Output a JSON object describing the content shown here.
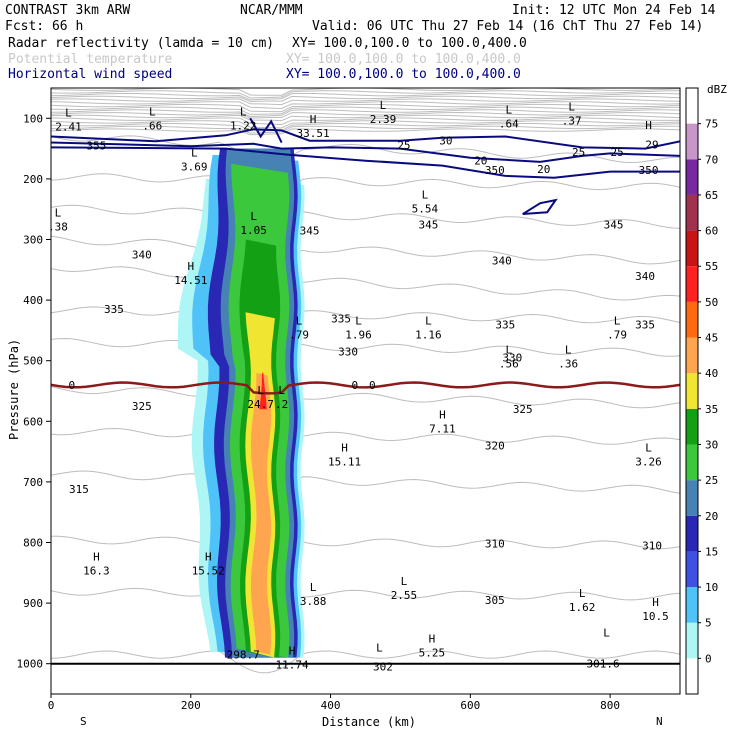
{
  "header": {
    "left1": "CONTRAST  3km ARW",
    "center1": "NCAR/MMM",
    "right1": "Init: 12 UTC Mon 24 Feb 14",
    "left2": "Fcst:   66 h",
    "right2": "Valid: 06 UTC Thu 27 Feb 14 (16 ChT Thu 27 Feb 14)",
    "fields": [
      {
        "name": "Radar reflectivity (lamda = 10 cm)",
        "xy": "XY= 100.0,100.0 to 100.0,400.0",
        "color": "#000000"
      },
      {
        "name": "Potential temperature",
        "xy": "XY= 100.0,100.0 to 100.0,400.0",
        "color": "#c8c8c8"
      },
      {
        "name": "Horizontal wind speed",
        "xy": "XY= 100.0,100.0 to 100.0,400.0",
        "color": "#000080"
      }
    ]
  },
  "chart_data": {
    "type": "cross-section",
    "ylabel": "Pressure (hPa)",
    "xlabel": "Distance (km)",
    "y_ticks": [
      100,
      200,
      300,
      400,
      500,
      600,
      700,
      800,
      900,
      1000
    ],
    "x_ticks": [
      0,
      200,
      400,
      600,
      800
    ],
    "y_range": [
      50,
      1050
    ],
    "x_range": [
      0,
      900
    ],
    "x_end_labels": {
      "left": "S",
      "right": "N"
    },
    "colorbar": {
      "unit": "dBZ",
      "levels": [
        "0",
        "5",
        "10",
        "15",
        "20",
        "25",
        "30",
        "35",
        "40",
        "45",
        "50",
        "55",
        "60",
        "65",
        "70",
        "75"
      ],
      "colors": [
        "#ffffff",
        "#aef5f5",
        "#4fc3f7",
        "#3f51e0",
        "#2828b4",
        "#4682b4",
        "#3cc83c",
        "#14a014",
        "#f0e632",
        "#ffa54f",
        "#ff6a10",
        "#ff2020",
        "#c81414",
        "#a03250",
        "#7828a0",
        "#c896c8"
      ]
    },
    "theta_labels": [
      {
        "t": "355",
        "x": 65,
        "p": 145
      },
      {
        "t": "350",
        "x": 635,
        "p": 185
      },
      {
        "t": "350",
        "x": 855,
        "p": 185
      },
      {
        "t": "345",
        "x": 540,
        "p": 275
      },
      {
        "t": "345",
        "x": 805,
        "p": 275
      },
      {
        "t": "345",
        "x": 370,
        "p": 285
      },
      {
        "t": "340",
        "x": 130,
        "p": 325
      },
      {
        "t": "340",
        "x": 645,
        "p": 335
      },
      {
        "t": "340",
        "x": 850,
        "p": 360
      },
      {
        "t": "335",
        "x": 90,
        "p": 415
      },
      {
        "t": "335",
        "x": 415,
        "p": 430
      },
      {
        "t": "335",
        "x": 650,
        "p": 440
      },
      {
        "t": "335",
        "x": 850,
        "p": 440
      },
      {
        "t": "330",
        "x": 425,
        "p": 485
      },
      {
        "t": "330",
        "x": 660,
        "p": 495
      },
      {
        "t": "325",
        "x": 130,
        "p": 575
      },
      {
        "t": "325",
        "x": 675,
        "p": 580
      },
      {
        "t": "320",
        "x": 635,
        "p": 640
      },
      {
        "t": "315",
        "x": 40,
        "p": 712
      },
      {
        "t": "310",
        "x": 635,
        "p": 802
      },
      {
        "t": "310",
        "x": 860,
        "p": 805
      },
      {
        "t": "305",
        "x": 635,
        "p": 895
      },
      {
        "t": "302",
        "x": 475,
        "p": 1005
      },
      {
        "t": "301.6",
        "x": 790,
        "p": 1000
      },
      {
        "t": "298.7",
        "x": 275,
        "p": 985
      }
    ],
    "wind_contour_labels": [
      {
        "t": "30",
        "x": 565,
        "p": 137
      },
      {
        "t": "25",
        "x": 505,
        "p": 144
      },
      {
        "t": "25",
        "x": 755,
        "p": 156
      },
      {
        "t": "25",
        "x": 810,
        "p": 156
      },
      {
        "t": "20",
        "x": 615,
        "p": 170
      },
      {
        "t": "20",
        "x": 705,
        "p": 184
      },
      {
        "t": "29",
        "x": 860,
        "p": 143
      }
    ],
    "extrema": [
      {
        "kind": "L",
        "v": "2.41",
        "x": 25,
        "p": 97
      },
      {
        "kind": "L",
        "v": ".66",
        "x": 145,
        "p": 95
      },
      {
        "kind": "L",
        "v": "1.22",
        "x": 275,
        "p": 95
      },
      {
        "kind": "L",
        "v": "2.39",
        "x": 475,
        "p": 85
      },
      {
        "kind": "L",
        "v": ".64",
        "x": 655,
        "p": 92
      },
      {
        "kind": "L",
        "v": ".37",
        "x": 745,
        "p": 87
      },
      {
        "kind": "H",
        "v": "33.51",
        "x": 375,
        "p": 108
      },
      {
        "kind": "H",
        "v": "",
        "x": 855,
        "p": 118
      },
      {
        "kind": "L",
        "v": "3.69",
        "x": 205,
        "p": 163
      },
      {
        "kind": "L",
        "v": "5.54",
        "x": 535,
        "p": 232
      },
      {
        "kind": "L",
        "v": ".38",
        "x": 10,
        "p": 262
      },
      {
        "kind": "L",
        "v": "1.05",
        "x": 290,
        "p": 268
      },
      {
        "kind": "H",
        "v": "14.51",
        "x": 200,
        "p": 350
      },
      {
        "kind": "L",
        "v": ".79",
        "x": 355,
        "p": 440
      },
      {
        "kind": "L",
        "v": "1.96",
        "x": 440,
        "p": 440
      },
      {
        "kind": "L",
        "v": "1.16",
        "x": 540,
        "p": 440
      },
      {
        "kind": "L",
        "v": ".56",
        "x": 655,
        "p": 488
      },
      {
        "kind": "L",
        "v": ".36",
        "x": 740,
        "p": 488
      },
      {
        "kind": "L",
        "v": ".79",
        "x": 810,
        "p": 440
      },
      {
        "kind": "H",
        "v": "7.11",
        "x": 560,
        "p": 595
      },
      {
        "kind": "H",
        "v": "15.11",
        "x": 420,
        "p": 650
      },
      {
        "kind": "L",
        "v": "3.26",
        "x": 855,
        "p": 650
      },
      {
        "kind": "H",
        "v": "16.3",
        "x": 65,
        "p": 830
      },
      {
        "kind": "H",
        "v": "15.52",
        "x": 225,
        "p": 830
      },
      {
        "kind": "L",
        "v": "3.88",
        "x": 375,
        "p": 880
      },
      {
        "kind": "L",
        "v": "2.55",
        "x": 505,
        "p": 870
      },
      {
        "kind": "L",
        "v": "1.62",
        "x": 760,
        "p": 890
      },
      {
        "kind": "H",
        "v": "10.5",
        "x": 865,
        "p": 905
      },
      {
        "kind": "L",
        "v": "",
        "x": 470,
        "p": 980
      },
      {
        "kind": "H",
        "v": "5.25",
        "x": 545,
        "p": 965
      },
      {
        "kind": "L",
        "v": "",
        "x": 795,
        "p": 955
      },
      {
        "kind": "H",
        "v": "11.74",
        "x": 345,
        "p": 985
      },
      {
        "kind": "L",
        "v": "24.7",
        "x": 300,
        "p": 555
      },
      {
        "kind": "L",
        "v": ".2",
        "x": 330,
        "p": 555
      }
    ],
    "freezing_level_label": "0",
    "freezing_level_p": 540
  }
}
